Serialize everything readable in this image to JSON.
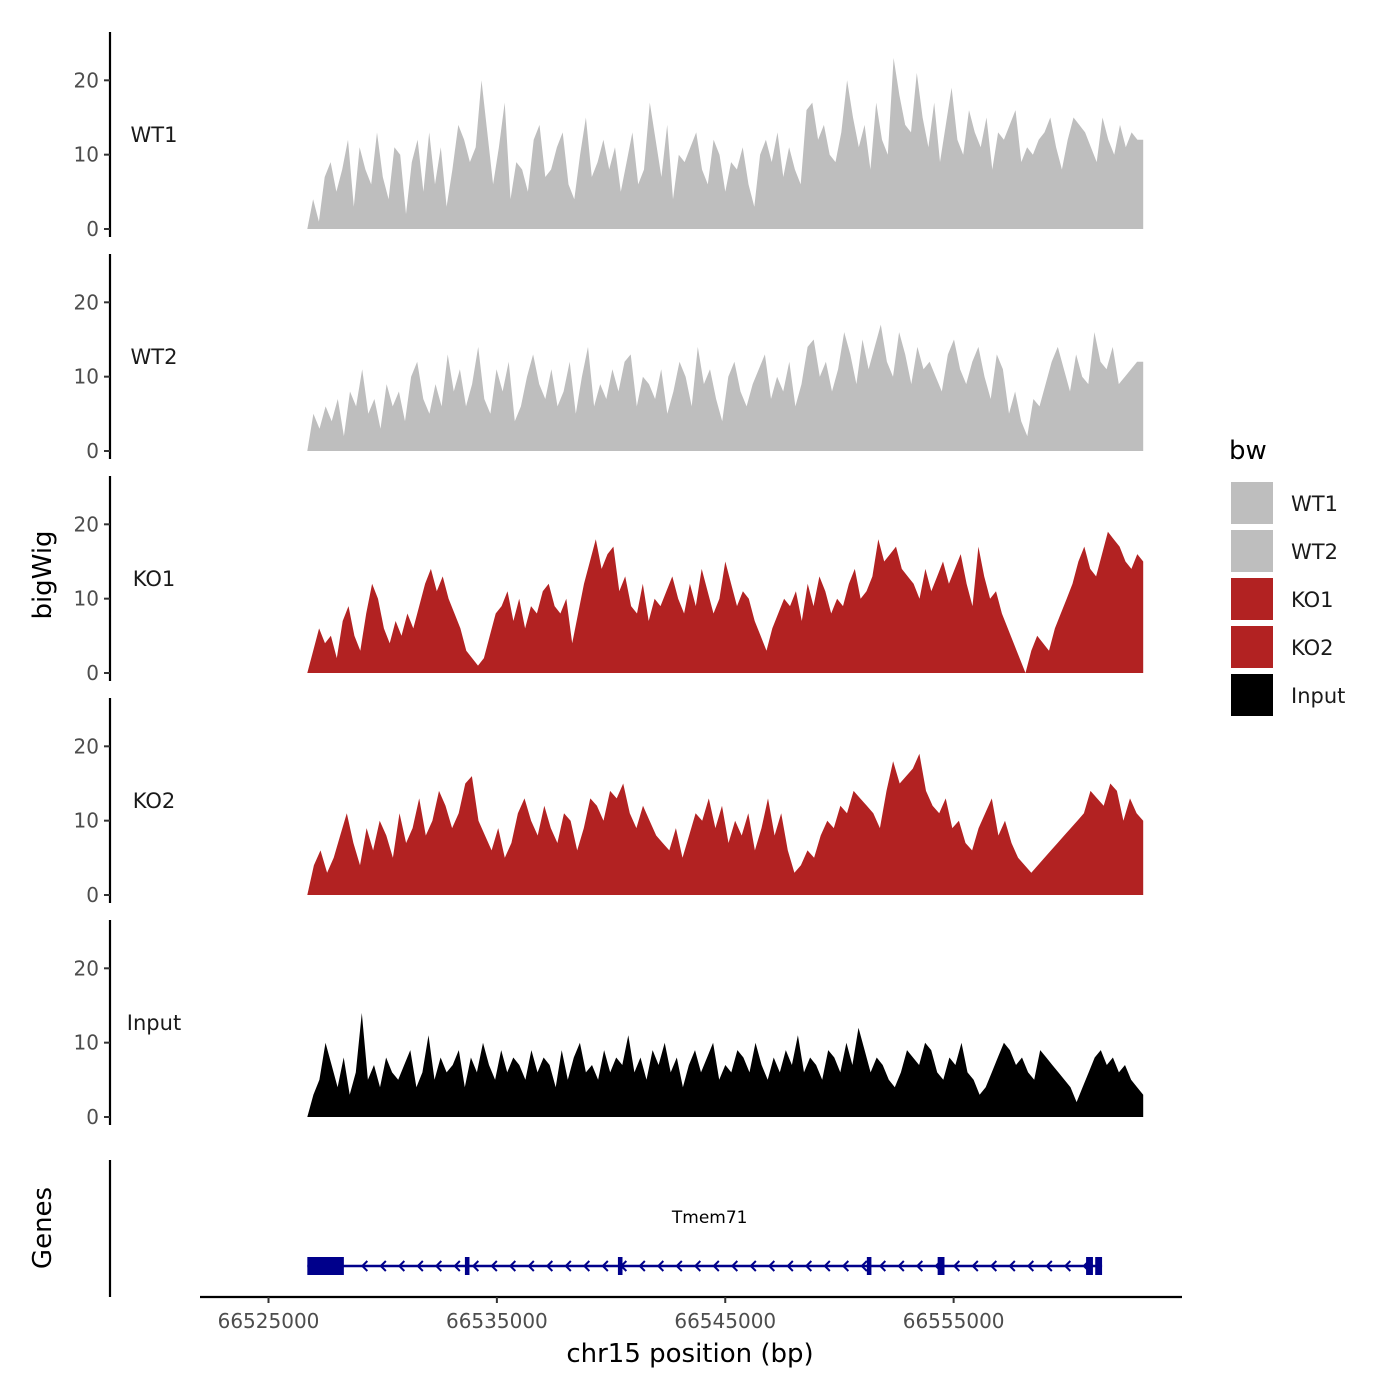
{
  "chart_data": {
    "type": "area",
    "title": "",
    "xlabel": "chr15 position (bp)",
    "ylabel": "bigWig",
    "genes_label": "Genes",
    "chromosome": "chr15",
    "xlim": [
      66522000,
      66565000
    ],
    "x_ticks": [
      66525000,
      66535000,
      66545000,
      66555000
    ],
    "x_tick_labels": [
      "66525000",
      "66535000",
      "66545000",
      "66555000"
    ],
    "region": [
      66526700,
      66563300
    ],
    "ylim": [
      0,
      26.5
    ],
    "y_ticks": [
      0,
      10,
      20
    ],
    "y_tick_labels": [
      "0",
      "10",
      "20"
    ],
    "legend": {
      "title": "bw",
      "placement": "right",
      "entries": [
        {
          "label": "WT1",
          "color": "#bebebe"
        },
        {
          "label": "WT2",
          "color": "#bebebe"
        },
        {
          "label": "KO1",
          "color": "#b22222"
        },
        {
          "label": "KO2",
          "color": "#b22222"
        },
        {
          "label": "Input",
          "color": "#000000"
        }
      ]
    },
    "series": [
      {
        "name": "WT1",
        "color": "#bebebe",
        "values": [
          0,
          4,
          1,
          7,
          9,
          5,
          8,
          12,
          3,
          11,
          8,
          6,
          13,
          7,
          4,
          11,
          10,
          2,
          9,
          12,
          5,
          13,
          6,
          11,
          3,
          8,
          14,
          12,
          9,
          11,
          20,
          13,
          6,
          11,
          17,
          4,
          9,
          8,
          5,
          12,
          14,
          7,
          8,
          11,
          13,
          6,
          4,
          10,
          15,
          7,
          9,
          12,
          8,
          11,
          5,
          9,
          13,
          6,
          8,
          17,
          12,
          7,
          14,
          4,
          10,
          9,
          11,
          13,
          8,
          6,
          12,
          10,
          5,
          9,
          8,
          11,
          6,
          3,
          10,
          12,
          9,
          13,
          7,
          11,
          8,
          6,
          16,
          17,
          12,
          14,
          10,
          9,
          13,
          20,
          15,
          11,
          14,
          8,
          17,
          12,
          10,
          23,
          18,
          14,
          13,
          21,
          15,
          11,
          17,
          9,
          14,
          19,
          12,
          10,
          16,
          13,
          11,
          15,
          8,
          13,
          12,
          14,
          16,
          9,
          11,
          10,
          12,
          13,
          15,
          11,
          8,
          12,
          15,
          14,
          13,
          11,
          9,
          15,
          12,
          10,
          14,
          11,
          13,
          12,
          12
        ]
      },
      {
        "name": "WT2",
        "color": "#bebebe",
        "values": [
          0,
          5,
          3,
          6,
          4,
          7,
          2,
          8,
          6,
          11,
          5,
          7,
          3,
          9,
          6,
          8,
          4,
          10,
          12,
          7,
          5,
          9,
          6,
          13,
          8,
          11,
          6,
          9,
          14,
          7,
          5,
          11,
          8,
          12,
          4,
          6,
          10,
          13,
          9,
          7,
          11,
          6,
          8,
          12,
          5,
          10,
          14,
          6,
          9,
          7,
          11,
          8,
          12,
          13,
          6,
          10,
          9,
          7,
          11,
          5,
          8,
          12,
          10,
          6,
          14,
          9,
          11,
          7,
          4,
          10,
          12,
          8,
          6,
          9,
          11,
          13,
          7,
          10,
          8,
          12,
          6,
          9,
          14,
          15,
          10,
          12,
          8,
          11,
          16,
          13,
          9,
          15,
          11,
          14,
          17,
          12,
          10,
          16,
          13,
          9,
          14,
          11,
          12,
          10,
          8,
          13,
          15,
          11,
          9,
          12,
          14,
          10,
          7,
          13,
          11,
          5,
          8,
          4,
          2,
          7,
          6,
          9,
          12,
          14,
          11,
          8,
          13,
          10,
          9,
          16,
          12,
          11,
          14,
          9,
          10,
          11,
          12,
          12
        ]
      },
      {
        "name": "KO1",
        "color": "#b22222",
        "values": [
          0,
          3,
          6,
          4,
          5,
          2,
          7,
          9,
          5,
          3,
          8,
          12,
          10,
          6,
          4,
          7,
          5,
          8,
          6,
          9,
          12,
          14,
          11,
          13,
          10,
          8,
          6,
          3,
          2,
          1,
          2,
          5,
          8,
          9,
          11,
          7,
          10,
          6,
          9,
          8,
          11,
          12,
          9,
          8,
          10,
          4,
          8,
          12,
          15,
          18,
          14,
          16,
          17,
          11,
          13,
          9,
          8,
          12,
          7,
          10,
          9,
          11,
          13,
          10,
          8,
          12,
          9,
          14,
          11,
          8,
          10,
          15,
          12,
          9,
          11,
          10,
          7,
          5,
          3,
          6,
          8,
          10,
          9,
          11,
          7,
          12,
          9,
          13,
          11,
          8,
          10,
          9,
          12,
          14,
          10,
          11,
          13,
          18,
          15,
          16,
          17,
          14,
          13,
          12,
          10,
          14,
          11,
          13,
          15,
          12,
          14,
          16,
          12,
          9,
          17,
          13,
          10,
          11,
          8,
          6,
          4,
          2,
          0,
          3,
          5,
          4,
          3,
          6,
          8,
          10,
          12,
          15,
          17,
          14,
          13,
          16,
          19,
          18,
          17,
          15,
          14,
          16,
          15
        ]
      },
      {
        "name": "KO2",
        "color": "#b22222",
        "values": [
          0,
          4,
          6,
          3,
          5,
          8,
          11,
          7,
          4,
          9,
          6,
          10,
          8,
          5,
          11,
          7,
          9,
          13,
          8,
          10,
          14,
          12,
          9,
          11,
          15,
          16,
          10,
          8,
          6,
          9,
          5,
          7,
          11,
          13,
          10,
          8,
          12,
          9,
          7,
          11,
          10,
          6,
          9,
          13,
          12,
          10,
          14,
          13,
          15,
          11,
          9,
          12,
          10,
          8,
          7,
          6,
          9,
          5,
          8,
          11,
          10,
          13,
          9,
          12,
          7,
          10,
          8,
          11,
          6,
          9,
          13,
          8,
          11,
          6,
          3,
          4,
          6,
          5,
          8,
          10,
          9,
          12,
          11,
          14,
          13,
          12,
          11,
          9,
          14,
          18,
          15,
          16,
          17,
          19,
          14,
          12,
          11,
          13,
          9,
          10,
          7,
          6,
          9,
          11,
          13,
          8,
          10,
          7,
          5,
          4,
          3,
          4,
          5,
          6,
          7,
          8,
          9,
          10,
          11,
          14,
          13,
          12,
          15,
          14,
          10,
          13,
          11,
          10
        ]
      },
      {
        "name": "Input",
        "color": "#000000",
        "values": [
          0,
          3,
          5,
          10,
          7,
          4,
          8,
          3,
          6,
          14,
          5,
          7,
          4,
          8,
          6,
          5,
          7,
          9,
          4,
          6,
          11,
          5,
          8,
          6,
          7,
          9,
          4,
          8,
          6,
          10,
          7,
          5,
          9,
          6,
          8,
          7,
          5,
          9,
          6,
          8,
          7,
          4,
          9,
          5,
          8,
          10,
          6,
          7,
          5,
          9,
          6,
          8,
          7,
          11,
          6,
          8,
          5,
          9,
          7,
          10,
          6,
          8,
          4,
          7,
          9,
          6,
          8,
          10,
          5,
          7,
          6,
          9,
          8,
          6,
          10,
          7,
          5,
          8,
          6,
          9,
          7,
          11,
          6,
          8,
          7,
          5,
          9,
          8,
          6,
          10,
          7,
          12,
          9,
          6,
          8,
          7,
          5,
          4,
          6,
          9,
          8,
          7,
          10,
          9,
          6,
          5,
          8,
          7,
          10,
          6,
          5,
          3,
          4,
          6,
          8,
          10,
          9,
          7,
          8,
          6,
          5,
          9,
          8,
          7,
          6,
          5,
          4,
          2,
          4,
          6,
          8,
          9,
          7,
          8,
          6,
          7,
          5,
          4,
          3
        ]
      }
    ],
    "gene": {
      "name": "Tmem71",
      "color": "#00008b",
      "strand": "-",
      "start": 66526700,
      "end": 66561500,
      "exons": [
        [
          66526700,
          66528300
        ],
        [
          66533600,
          66533800
        ],
        [
          66540300,
          66540500
        ],
        [
          66551200,
          66551400
        ],
        [
          66554300,
          66554600
        ],
        [
          66560800,
          66561100
        ],
        [
          66561200,
          66561500
        ]
      ]
    }
  }
}
